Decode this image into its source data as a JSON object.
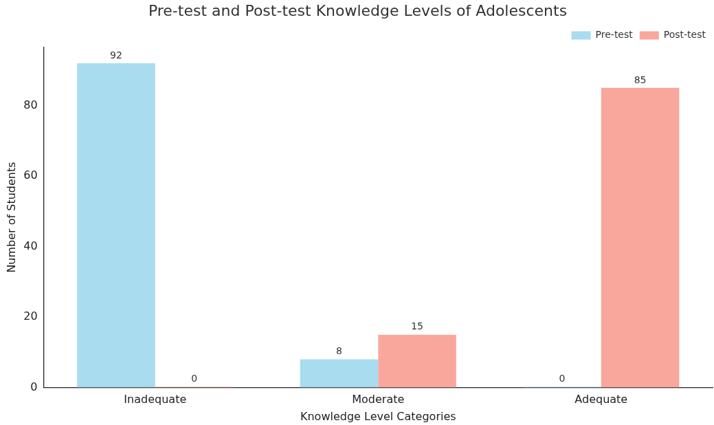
{
  "chart_data": {
    "type": "bar",
    "title": "Pre-test and Post-test Knowledge Levels of Adolescents",
    "xlabel": "Knowledge Level Categories",
    "ylabel": "Number of Students",
    "categories": [
      "Inadequate",
      "Moderate",
      "Adequate"
    ],
    "series": [
      {
        "name": "Pre-test",
        "color": "#a8dcee",
        "values": [
          92,
          8,
          0
        ]
      },
      {
        "name": "Post-test",
        "color": "#f9a79d",
        "values": [
          0,
          15,
          85
        ]
      }
    ],
    "ylim": [
      0,
      96.6
    ],
    "yticks": [
      0,
      20,
      40,
      60,
      80
    ],
    "grid": false,
    "legend": "top right",
    "data_labels": true
  }
}
